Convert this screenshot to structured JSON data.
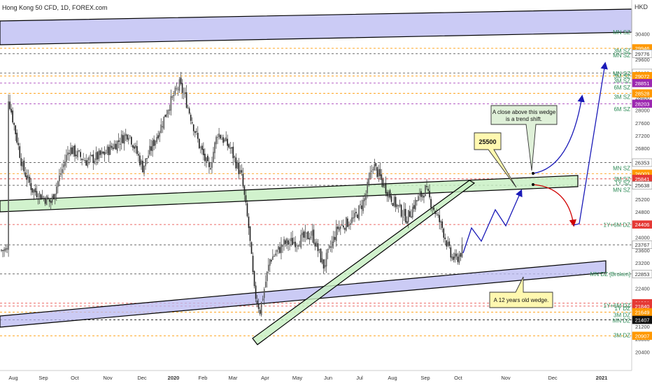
{
  "header": {
    "title": "Hong Kong 50 CFD, 1D, FOREX.com",
    "currency": "HKD"
  },
  "colors": {
    "up": "#5b5b5b",
    "down": "#1c1c1c",
    "band_blue": "#b9b9f2",
    "band_green": "#c6efc0",
    "arrow_blue": "#1a1ab8",
    "arrow_red": "#d00000",
    "zone_text": "#2e8b57",
    "callout_yellow": "#fff8b0",
    "callout_green": "#dff0d8"
  },
  "chart_data": {
    "type": "candlestick",
    "ylim": [
      20400,
      30600
    ],
    "x_ticks": [
      "Aug",
      "Sep",
      "Oct",
      "Nov",
      "Dec",
      "2020",
      "Feb",
      "Mar",
      "Apr",
      "May",
      "Jun",
      "Jul",
      "Aug",
      "Sep",
      "Oct",
      "Nov",
      "Dec",
      "2021"
    ],
    "y_ticks": [
      30400,
      30000,
      29600,
      29200,
      28800,
      28400,
      28000,
      27600,
      27200,
      26800,
      26400,
      26000,
      25600,
      25200,
      24800,
      24400,
      24000,
      23600,
      23200,
      22800,
      22400,
      22000,
      21600,
      21200,
      20800,
      20400
    ],
    "ohlc_anchor_closes": [
      {
        "x": 5,
        "close": 28400
      },
      {
        "x": 15,
        "close": 26200
      },
      {
        "x": 22,
        "close": 25500
      },
      {
        "x": 35,
        "close": 25100
      },
      {
        "x": 48,
        "close": 26800
      },
      {
        "x": 60,
        "close": 26400
      },
      {
        "x": 72,
        "close": 26600
      },
      {
        "x": 90,
        "close": 27300
      },
      {
        "x": 100,
        "close": 26200
      },
      {
        "x": 113,
        "close": 27500
      },
      {
        "x": 118,
        "close": 28100
      },
      {
        "x": 126,
        "close": 28800
      },
      {
        "x": 130,
        "close": 28400
      },
      {
        "x": 140,
        "close": 26900
      },
      {
        "x": 147,
        "close": 26100
      },
      {
        "x": 153,
        "close": 27300
      },
      {
        "x": 162,
        "close": 26800
      },
      {
        "x": 170,
        "close": 25900
      },
      {
        "x": 175,
        "close": 24300
      },
      {
        "x": 179,
        "close": 22300
      },
      {
        "x": 183,
        "close": 21700
      },
      {
        "x": 190,
        "close": 23300
      },
      {
        "x": 200,
        "close": 23800
      },
      {
        "x": 210,
        "close": 23900
      },
      {
        "x": 220,
        "close": 24100
      },
      {
        "x": 228,
        "close": 23100
      },
      {
        "x": 238,
        "close": 24300
      },
      {
        "x": 250,
        "close": 24600
      },
      {
        "x": 257,
        "close": 25200
      },
      {
        "x": 263,
        "close": 26300
      },
      {
        "x": 270,
        "close": 25700
      },
      {
        "x": 278,
        "close": 25100
      },
      {
        "x": 287,
        "close": 24600
      },
      {
        "x": 293,
        "close": 25100
      },
      {
        "x": 300,
        "close": 25500
      },
      {
        "x": 305,
        "close": 25000
      },
      {
        "x": 312,
        "close": 24300
      },
      {
        "x": 318,
        "close": 23400
      },
      {
        "x": 322,
        "close": 23300
      },
      {
        "x": 326,
        "close": 23600
      }
    ],
    "price_labels": [
      {
        "value": 29946,
        "text": "29946",
        "bg": "#ff9800",
        "fg": "#ffffff"
      },
      {
        "value": 29776,
        "text": "29776",
        "bg": "#ffffff",
        "fg": "#333333"
      },
      {
        "value": 29169,
        "text": "29169",
        "bg": "#ffffff",
        "fg": "#333333"
      },
      {
        "value": 29072,
        "text": "29072",
        "bg": "#ff9800",
        "fg": "#ffffff"
      },
      {
        "value": 28851,
        "text": "28851",
        "bg": "#9c27b0",
        "fg": "#ffffff"
      },
      {
        "value": 28528,
        "text": "28528",
        "bg": "#ff9800",
        "fg": "#ffffff"
      },
      {
        "value": 28203,
        "text": "28203",
        "bg": "#9c27b0",
        "fg": "#ffffff"
      },
      {
        "value": 26353,
        "text": "26353",
        "bg": "#ffffff",
        "fg": "#333333"
      },
      {
        "value": 26003,
        "text": "26003",
        "bg": "#ff9800",
        "fg": "#ffffff"
      },
      {
        "value": 25841,
        "text": "25841",
        "bg": "#e53935",
        "fg": "#ffffff"
      },
      {
        "value": 25638,
        "text": "25638",
        "bg": "#ffffff",
        "fg": "#333333"
      },
      {
        "value": 24406,
        "text": "24406",
        "bg": "#e53935",
        "fg": "#ffffff"
      },
      {
        "value": 23767,
        "text": "23767",
        "bg": "#ffffff",
        "fg": "#333333"
      },
      {
        "value": 22853,
        "text": "22853",
        "bg": "#ffffff",
        "fg": "#333333"
      },
      {
        "value": 21931,
        "text": "21931",
        "bg": "#e53935",
        "fg": "#ffffff"
      },
      {
        "value": 21840,
        "text": "21840",
        "bg": "#e53935",
        "fg": "#ffffff"
      },
      {
        "value": 21649,
        "text": "21649",
        "bg": "#ff9800",
        "fg": "#ffffff"
      },
      {
        "value": 21407,
        "text": "21407",
        "bg": "#111111",
        "fg": "#ffffff"
      },
      {
        "value": 20907,
        "text": "20907",
        "bg": "#ff9800",
        "fg": "#ffffff"
      }
    ],
    "zone_labels": [
      {
        "value": 30450,
        "text": "MN SZ"
      },
      {
        "value": 29870,
        "text": "3M SZ"
      },
      {
        "value": 29730,
        "text": "MN SZ"
      },
      {
        "value": 29160,
        "text": "MN SZ"
      },
      {
        "value": 29070,
        "text": "3M SZ"
      },
      {
        "value": 28930,
        "text": "3M SZ"
      },
      {
        "value": 28720,
        "text": "6M SZ"
      },
      {
        "value": 28420,
        "text": "3M SZ"
      },
      {
        "value": 28030,
        "text": "6M SZ"
      },
      {
        "value": 26180,
        "text": "MN SZ"
      },
      {
        "value": 25840,
        "text": "3M SZ"
      },
      {
        "value": 25720,
        "text": "1Y SZ"
      },
      {
        "value": 25500,
        "text": "MN SZ"
      },
      {
        "value": 24400,
        "text": "1Y+6M DZ"
      },
      {
        "value": 22850,
        "text": "MN DZ [Broken]"
      },
      {
        "value": 21860,
        "text": "1Y+6M DZ"
      },
      {
        "value": 21770,
        "text": "1Y DZ"
      },
      {
        "value": 21560,
        "text": "3M DZ"
      },
      {
        "value": 21390,
        "text": "MN DZ"
      },
      {
        "value": 20930,
        "text": "3M DZ"
      }
    ],
    "annotations": [
      {
        "id": "callout-25500",
        "text": "25500"
      },
      {
        "id": "callout-trend",
        "line1": "A close above this wedge",
        "line2": "is a trend shift."
      },
      {
        "id": "callout-wedge",
        "text": "A 12 years old wedge."
      }
    ],
    "grid": false,
    "legend": "none"
  }
}
